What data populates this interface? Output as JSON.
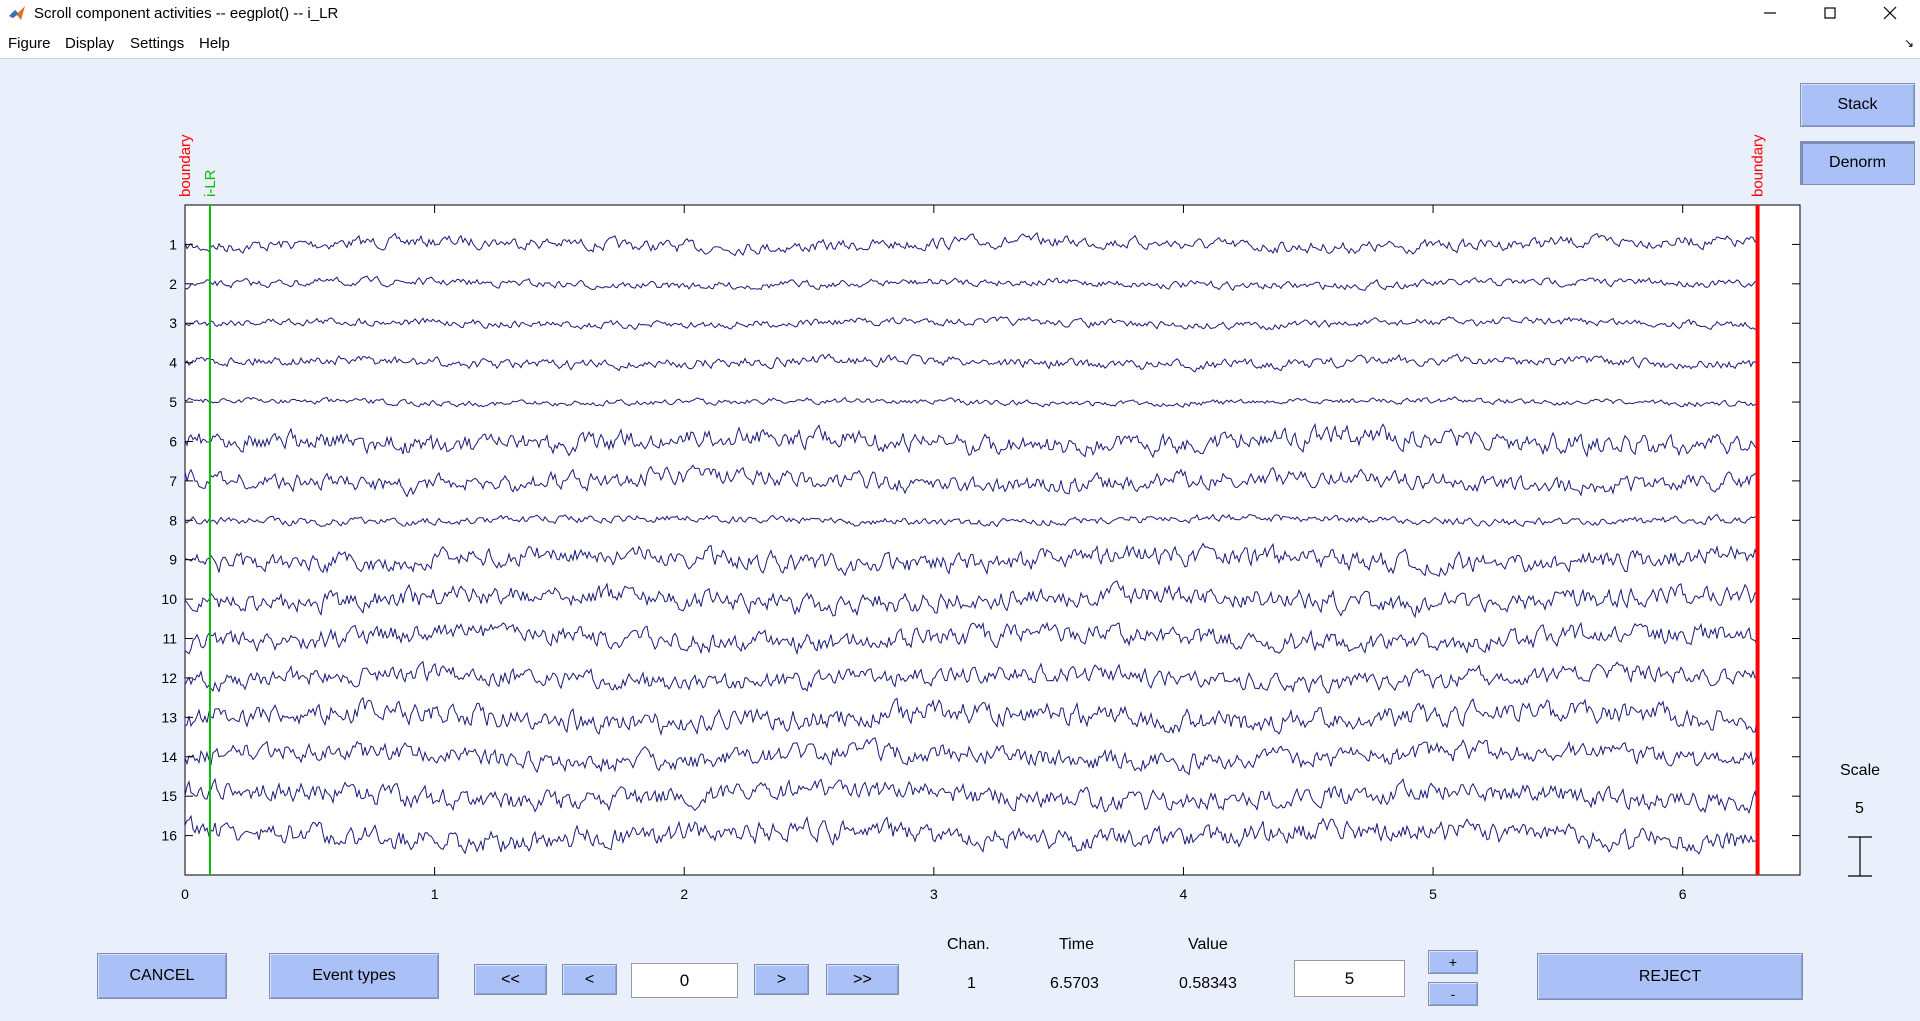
{
  "window": {
    "title": "Scroll component activities -- eegplot() -- i_LR"
  },
  "menu": [
    "Figure",
    "Display",
    "Settings",
    "Help"
  ],
  "side_buttons": {
    "stack": "Stack",
    "denorm": "Denorm"
  },
  "scale": {
    "label": "Scale",
    "value": "5"
  },
  "channels": [
    "1",
    "2",
    "3",
    "4",
    "5",
    "6",
    "7",
    "8",
    "9",
    "10",
    "11",
    "12",
    "13",
    "14",
    "15",
    "16"
  ],
  "x_ticks": [
    "0",
    "1",
    "2",
    "3",
    "4",
    "5",
    "6"
  ],
  "events": [
    {
      "label": "boundary",
      "time": 0.0,
      "color": "#ff0000"
    },
    {
      "label": "i-LR",
      "time": 0.1,
      "color": "#00c000"
    },
    {
      "label": "boundary",
      "time": 6.3,
      "color": "#ff0000"
    }
  ],
  "bottom": {
    "cancel": "CANCEL",
    "event_types": "Event types",
    "nav_first": "<<",
    "nav_prev": "<",
    "position_value": "0",
    "nav_next": ">",
    "nav_last": ">>",
    "chan_label": "Chan.",
    "time_label": "Time",
    "value_label": "Value",
    "chan_value": "1",
    "time_value": "6.5703",
    "value_value": "0.58343",
    "spacing_value": "5",
    "plus": "+",
    "minus": "-",
    "reject": "REJECT"
  },
  "colors": {
    "trace": "#1a1a7a",
    "background": "#eaf0fb",
    "button": "#a9c1f7"
  }
}
